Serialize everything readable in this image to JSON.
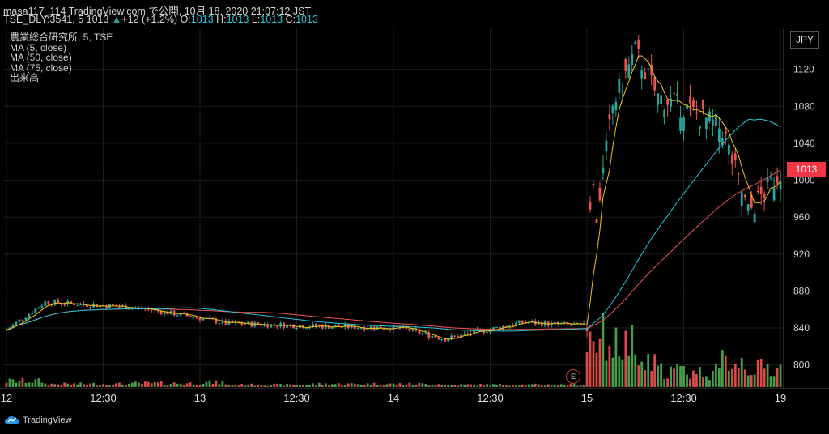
{
  "header": {
    "line1": "masa117_114 TradingView.com で公開, 10月 18, 2020 21:07:12 JST",
    "symbol": "TSE_DLY:3541, 5",
    "last": "1013",
    "change_arrow": "▲",
    "change": "+12 (+1.2%)",
    "o_label": "O:",
    "o": "1013",
    "h_label": "H:",
    "h": "1013",
    "l_label": "L:",
    "l": "1013",
    "c_label": "C:",
    "c": "1013"
  },
  "legend": [
    "農業総合研究所, 5, TSE",
    "MA (5, close)",
    "MA (50, close)",
    "MA (75, close)",
    "出来高"
  ],
  "currency_button": "JPY",
  "last_price_tag": "1013",
  "event_marker": "E",
  "brand": "TradingView",
  "colors": {
    "up": "#26a69a",
    "down": "#ef5350",
    "ma5": "#f0c419",
    "ma50": "#26c6da",
    "ma75": "#ef5350",
    "vol_up": "#4caf50",
    "vol_down": "#ef5350",
    "price_line": "#f23645"
  },
  "chart_data": {
    "type": "candlestick",
    "y_axis": {
      "ticks": [
        800,
        840,
        880,
        920,
        960,
        1000,
        1040,
        1080,
        1120
      ],
      "range": [
        776,
        1160
      ]
    },
    "x_axis": {
      "ticks": [
        {
          "label": "12",
          "index": 0
        },
        {
          "label": "12:30",
          "index": 30
        },
        {
          "label": "13",
          "index": 60
        },
        {
          "label": "12:30",
          "index": 90
        },
        {
          "label": "14",
          "index": 120
        },
        {
          "label": "12:30",
          "index": 150
        },
        {
          "label": "15",
          "index": 180
        },
        {
          "label": "12:30",
          "index": 210
        },
        {
          "label": "19",
          "index": 240
        }
      ],
      "count": 242
    },
    "segments": [
      {
        "from": 0,
        "to": 12,
        "start": 838,
        "end": 868,
        "vol": 8
      },
      {
        "from": 12,
        "to": 40,
        "start": 868,
        "end": 862,
        "vol": 4
      },
      {
        "from": 40,
        "to": 58,
        "start": 862,
        "end": 852,
        "vol": 5
      },
      {
        "from": 58,
        "to": 68,
        "start": 852,
        "end": 845,
        "vol": 6
      },
      {
        "from": 68,
        "to": 95,
        "start": 845,
        "end": 842,
        "vol": 3
      },
      {
        "from": 95,
        "to": 122,
        "start": 842,
        "end": 840,
        "vol": 4
      },
      {
        "from": 122,
        "to": 136,
        "start": 840,
        "end": 828,
        "vol": 4
      },
      {
        "from": 136,
        "to": 160,
        "start": 828,
        "end": 846,
        "vol": 3
      },
      {
        "from": 160,
        "to": 180,
        "start": 846,
        "end": 842,
        "vol": 3
      },
      {
        "from": 180,
        "to": 181,
        "start": 842,
        "end": 870,
        "vol": 60
      },
      {
        "from": 181,
        "to": 183,
        "start": 980,
        "end": 1000,
        "vol": 70
      },
      {
        "from": 183,
        "to": 188,
        "start": 960,
        "end": 1080,
        "vol": 65
      },
      {
        "from": 188,
        "to": 195,
        "start": 1080,
        "end": 1140,
        "vol": 55
      },
      {
        "from": 195,
        "to": 202,
        "start": 1140,
        "end": 1090,
        "vol": 30
      },
      {
        "from": 202,
        "to": 212,
        "start": 1090,
        "end": 1075,
        "vol": 22
      },
      {
        "from": 212,
        "to": 222,
        "start": 1075,
        "end": 1055,
        "vol": 20
      },
      {
        "from": 222,
        "to": 230,
        "start": 1055,
        "end": 965,
        "vol": 35
      },
      {
        "from": 230,
        "to": 241,
        "start": 965,
        "end": 1013,
        "vol": 25
      }
    ],
    "last_price": 1013
  }
}
